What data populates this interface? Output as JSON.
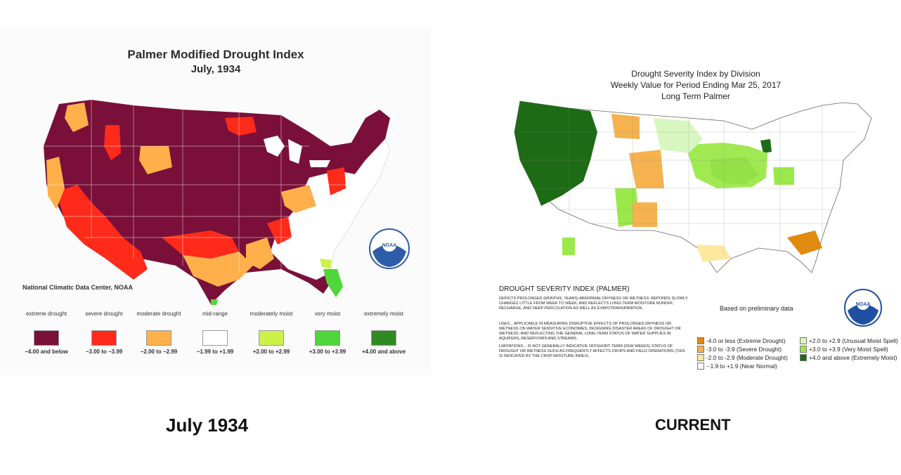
{
  "left_map": {
    "title": "Palmer Modified Drought Index",
    "subtitle": "July, 1934",
    "source": "National Climatic Data Center, NOAA",
    "logo_text": "NOAA",
    "legend": [
      {
        "label": "extreme drought",
        "range": "−4.00 and below",
        "color": "#7a1039"
      },
      {
        "label": "severe drought",
        "range": "−3.00 to −3.99",
        "color": "#ff2a1a"
      },
      {
        "label": "moderate drought",
        "range": "−2.00 to −2.99",
        "color": "#ffb04a"
      },
      {
        "label": "mid-range",
        "range": "−1.99 to +1.99",
        "color": "#ffffff"
      },
      {
        "label": "moderately moist",
        "range": "+2.00 to +2.99",
        "color": "#ccf24a"
      },
      {
        "label": "very moist",
        "range": "+3.00 to +3.99",
        "color": "#4ed63a"
      },
      {
        "label": "extremely moist",
        "range": "+4.00 and above",
        "color": "#2f8a22"
      }
    ]
  },
  "right_map": {
    "title": "Drought Severity Index by Division",
    "subtitle": "Weekly Value for Period Ending Mar 25, 2017",
    "subtitle2": "Long Term Palmer",
    "index_title": "DROUGHT SEVERITY INDEX (PALMER)",
    "para1": "DEPICTS PROLONGED (MONTHS, YEARS) ABNORMAL DRYNESS OR WETNESS: REPONDS SLOWLY; CHANGES LITTLE FROM WEEK TO WEEK; AND REFLECTS LONG-TERM MOISTURE RUNOFF, RECHARGE, AND DEEP PERCOLATION AS WELL AS EVAPOTRANSPIRATION.",
    "para2": "USES... APPLICABLE IN MEASURING DISRUPTIVE EFFECTS OF PROLONGED DRYNESS OR WETNESS ON WATER SENSITIVE ECONOMIES, DESIGNING DISASTER AREAS OF DROUGHT OR WETNESS; AND REFLECTING THE GENERAL LONG-TERM STATUS OF WATER SUPPLIES IN AQUIFERS, RESERVOIRS AND STREAMS.",
    "para3": "LIMITATIONS... IS NOT GENERALLY INDICATIVE OFFSHORT-TERM (FEW WEEKS) STATUS OF DROUGHT OR WETNESS SUCH AS FREQUENTLY AFFECTS CROPS AND FIELD OPERATIONS (THIS IS INDICATED BY THE CROP MOISTURE INDEX).",
    "note": "Based on preliminary data",
    "logo_text": "NOAA",
    "legend": [
      {
        "label": "-4.0 or less (Extreme Drought)",
        "color": "#e08a10"
      },
      {
        "label": "-3.0 to -3.9 (Severe Drought)",
        "color": "#f5b24e"
      },
      {
        "label": "-2.0 to -2.9 (Moderate Drought)",
        "color": "#fde8a0"
      },
      {
        "label": "--1.9 to +1.9 (Near Normal)",
        "color": "#ffffff"
      },
      {
        "label": "+2.0 to +2.9 (Unusual Moist Spell)",
        "color": "#d8f7c0"
      },
      {
        "label": "+3.0 to +3.9 (Very Moist Spell)",
        "color": "#9be84a"
      },
      {
        "label": "+4.0 and above (Extremely Moist)",
        "color": "#1e6b16"
      }
    ]
  },
  "captions": {
    "left": "July 1934",
    "right": "CURRENT"
  }
}
